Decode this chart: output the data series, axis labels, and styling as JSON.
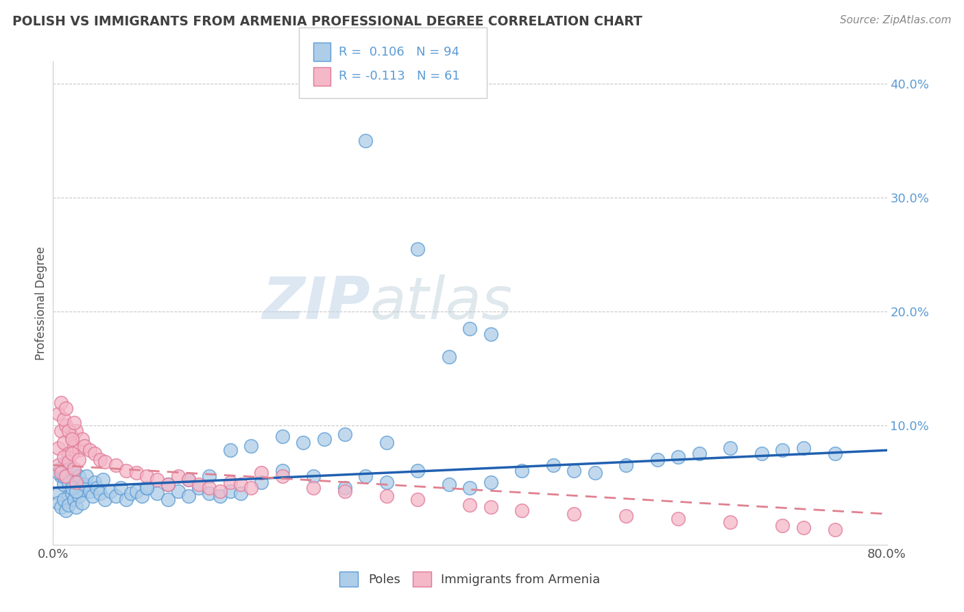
{
  "title": "POLISH VS IMMIGRANTS FROM ARMENIA PROFESSIONAL DEGREE CORRELATION CHART",
  "source": "Source: ZipAtlas.com",
  "ylabel": "Professional Degree",
  "ytick_values": [
    0.0,
    0.1,
    0.2,
    0.3,
    0.4
  ],
  "xlim": [
    0.0,
    0.8
  ],
  "ylim": [
    -0.005,
    0.42
  ],
  "poles_color": "#aecde8",
  "armenia_color": "#f4b8c8",
  "poles_edge_color": "#5b9bd5",
  "armenia_edge_color": "#e07898",
  "poles_line_color": "#2060b0",
  "armenia_line_color": "#e08090",
  "title_color": "#404040",
  "background_color": "#ffffff",
  "grid_color": "#c8c8c8",
  "watermark_zip": "ZIP",
  "watermark_atlas": "atlas",
  "poles_R": 0.106,
  "poles_N": 94,
  "armenia_R": -0.113,
  "armenia_N": 61,
  "poles_scatter_x": [
    0.005,
    0.008,
    0.01,
    0.012,
    0.015,
    0.018,
    0.02,
    0.022,
    0.025,
    0.028,
    0.005,
    0.008,
    0.01,
    0.012,
    0.015,
    0.018,
    0.02,
    0.022,
    0.025,
    0.028,
    0.005,
    0.008,
    0.01,
    0.012,
    0.015,
    0.018,
    0.02,
    0.022,
    0.025,
    0.03,
    0.032,
    0.035,
    0.038,
    0.04,
    0.042,
    0.045,
    0.048,
    0.05,
    0.055,
    0.06,
    0.065,
    0.07,
    0.075,
    0.08,
    0.085,
    0.09,
    0.1,
    0.11,
    0.12,
    0.13,
    0.14,
    0.15,
    0.16,
    0.17,
    0.18,
    0.2,
    0.22,
    0.25,
    0.28,
    0.3,
    0.32,
    0.35,
    0.38,
    0.4,
    0.42,
    0.45,
    0.48,
    0.5,
    0.52,
    0.55,
    0.58,
    0.6,
    0.62,
    0.65,
    0.68,
    0.7,
    0.72,
    0.75,
    0.3,
    0.35,
    0.4,
    0.42,
    0.38,
    0.32,
    0.28,
    0.26,
    0.24,
    0.22,
    0.19,
    0.17,
    0.15,
    0.13,
    0.11,
    0.09
  ],
  "poles_scatter_y": [
    0.04,
    0.055,
    0.048,
    0.06,
    0.038,
    0.05,
    0.045,
    0.052,
    0.042,
    0.048,
    0.032,
    0.028,
    0.035,
    0.025,
    0.03,
    0.04,
    0.035,
    0.028,
    0.038,
    0.032,
    0.058,
    0.062,
    0.055,
    0.068,
    0.05,
    0.045,
    0.06,
    0.042,
    0.055,
    0.048,
    0.055,
    0.042,
    0.038,
    0.05,
    0.045,
    0.04,
    0.052,
    0.035,
    0.042,
    0.038,
    0.045,
    0.035,
    0.04,
    0.042,
    0.038,
    0.045,
    0.04,
    0.035,
    0.042,
    0.038,
    0.045,
    0.04,
    0.038,
    0.042,
    0.04,
    0.05,
    0.06,
    0.055,
    0.045,
    0.055,
    0.05,
    0.06,
    0.048,
    0.045,
    0.05,
    0.06,
    0.065,
    0.06,
    0.058,
    0.065,
    0.07,
    0.072,
    0.075,
    0.08,
    0.075,
    0.078,
    0.08,
    0.075,
    0.35,
    0.255,
    0.185,
    0.18,
    0.16,
    0.085,
    0.092,
    0.088,
    0.085,
    0.09,
    0.082,
    0.078,
    0.055,
    0.052,
    0.048,
    0.045
  ],
  "armenia_scatter_x": [
    0.005,
    0.008,
    0.01,
    0.012,
    0.015,
    0.018,
    0.02,
    0.022,
    0.025,
    0.028,
    0.005,
    0.008,
    0.01,
    0.012,
    0.015,
    0.018,
    0.02,
    0.022,
    0.025,
    0.005,
    0.008,
    0.01,
    0.012,
    0.015,
    0.018,
    0.02,
    0.03,
    0.035,
    0.04,
    0.045,
    0.05,
    0.06,
    0.07,
    0.08,
    0.09,
    0.1,
    0.11,
    0.12,
    0.13,
    0.14,
    0.15,
    0.16,
    0.17,
    0.18,
    0.19,
    0.2,
    0.22,
    0.25,
    0.28,
    0.32,
    0.35,
    0.4,
    0.42,
    0.45,
    0.5,
    0.55,
    0.6,
    0.65,
    0.7,
    0.72,
    0.75
  ],
  "armenia_scatter_y": [
    0.08,
    0.095,
    0.085,
    0.1,
    0.075,
    0.09,
    0.082,
    0.095,
    0.078,
    0.088,
    0.065,
    0.058,
    0.072,
    0.055,
    0.068,
    0.075,
    0.062,
    0.05,
    0.07,
    0.11,
    0.12,
    0.105,
    0.115,
    0.095,
    0.088,
    0.102,
    0.082,
    0.078,
    0.075,
    0.07,
    0.068,
    0.065,
    0.06,
    0.058,
    0.055,
    0.052,
    0.048,
    0.055,
    0.052,
    0.048,
    0.045,
    0.042,
    0.05,
    0.048,
    0.045,
    0.058,
    0.055,
    0.045,
    0.042,
    0.038,
    0.035,
    0.03,
    0.028,
    0.025,
    0.022,
    0.02,
    0.018,
    0.015,
    0.012,
    0.01,
    0.008
  ],
  "poles_trend_x0": 0.0,
  "poles_trend_y0": 0.045,
  "poles_trend_x1": 0.8,
  "poles_trend_y1": 0.078,
  "armenia_trend_x0": 0.0,
  "armenia_trend_y0": 0.065,
  "armenia_trend_x1": 0.8,
  "armenia_trend_y1": 0.022
}
